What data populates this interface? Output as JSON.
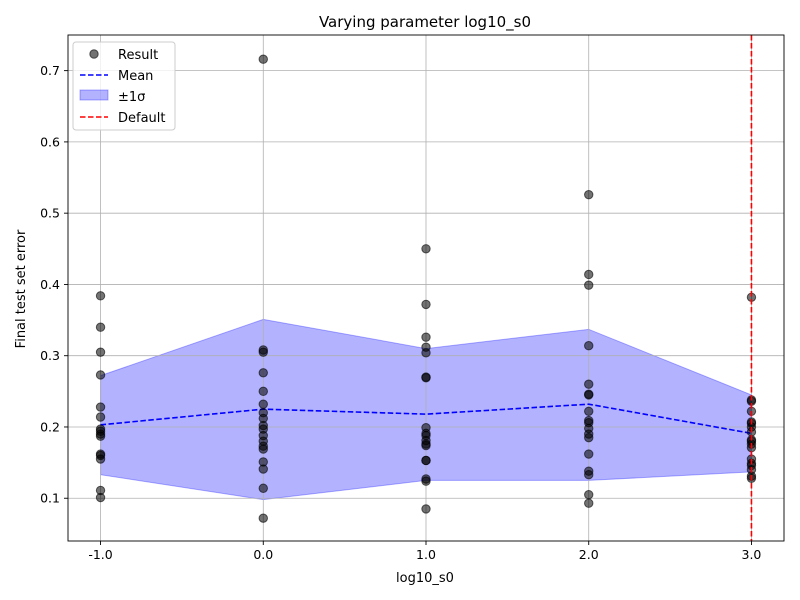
{
  "chart_data": {
    "type": "scatter",
    "title": "Varying parameter log10_s0",
    "xlabel": "log10_s0",
    "ylabel": "Final test set error",
    "xlim": [
      -1.2,
      3.2
    ],
    "ylim": [
      0.04,
      0.75
    ],
    "xticks": [
      -1.0,
      0.0,
      1.0,
      2.0,
      3.0
    ],
    "xtick_labels": [
      "-1.0",
      "0.0",
      "1.0",
      "2.0",
      "3.0"
    ],
    "yticks": [
      0.1,
      0.2,
      0.3,
      0.4,
      0.5,
      0.6,
      0.7
    ],
    "ytick_labels": [
      "0.1",
      "0.2",
      "0.3",
      "0.4",
      "0.5",
      "0.6",
      "0.7"
    ],
    "grid": true,
    "legend_position": "top-left",
    "legend": [
      "Result",
      "Mean",
      "±1σ",
      "Default"
    ],
    "colors": {
      "result": "#000000",
      "mean": "#0000ff",
      "band": "#0000ff",
      "default": "#ff0000",
      "grid": "#b0b0b0"
    },
    "results": [
      {
        "x": -1.0,
        "ys": [
          0.384,
          0.34,
          0.305,
          0.273,
          0.228,
          0.214,
          0.197,
          0.194,
          0.19,
          0.187,
          0.162,
          0.16,
          0.155,
          0.111,
          0.101
        ]
      },
      {
        "x": 0.0,
        "ys": [
          0.716,
          0.308,
          0.305,
          0.276,
          0.25,
          0.232,
          0.22,
          0.212,
          0.202,
          0.197,
          0.188,
          0.18,
          0.173,
          0.169,
          0.151,
          0.141,
          0.114,
          0.072
        ]
      },
      {
        "x": 1.0,
        "ys": [
          0.45,
          0.372,
          0.326,
          0.312,
          0.304,
          0.27,
          0.269,
          0.199,
          0.191,
          0.188,
          0.181,
          0.176,
          0.174,
          0.153,
          0.153,
          0.127,
          0.124,
          0.085
        ]
      },
      {
        "x": 2.0,
        "ys": [
          0.526,
          0.414,
          0.399,
          0.314,
          0.26,
          0.246,
          0.245,
          0.222,
          0.209,
          0.206,
          0.198,
          0.19,
          0.185,
          0.162,
          0.138,
          0.133,
          0.105,
          0.093
        ]
      },
      {
        "x": 3.0,
        "ys": [
          0.382,
          0.238,
          0.236,
          0.222,
          0.207,
          0.205,
          0.2,
          0.193,
          0.182,
          0.18,
          0.176,
          0.171,
          0.155,
          0.149,
          0.146,
          0.14,
          0.131,
          0.128
        ]
      }
    ],
    "mean": {
      "x": [
        -1.0,
        0.0,
        1.0,
        2.0,
        3.0
      ],
      "y": [
        0.203,
        0.225,
        0.218,
        0.232,
        0.191
      ]
    },
    "band": {
      "x": [
        -1.0,
        0.0,
        1.0,
        2.0,
        3.0
      ],
      "upper": [
        0.272,
        0.351,
        0.31,
        0.337,
        0.245
      ],
      "lower": [
        0.133,
        0.098,
        0.125,
        0.125,
        0.137
      ]
    },
    "default_x": 3.0
  }
}
